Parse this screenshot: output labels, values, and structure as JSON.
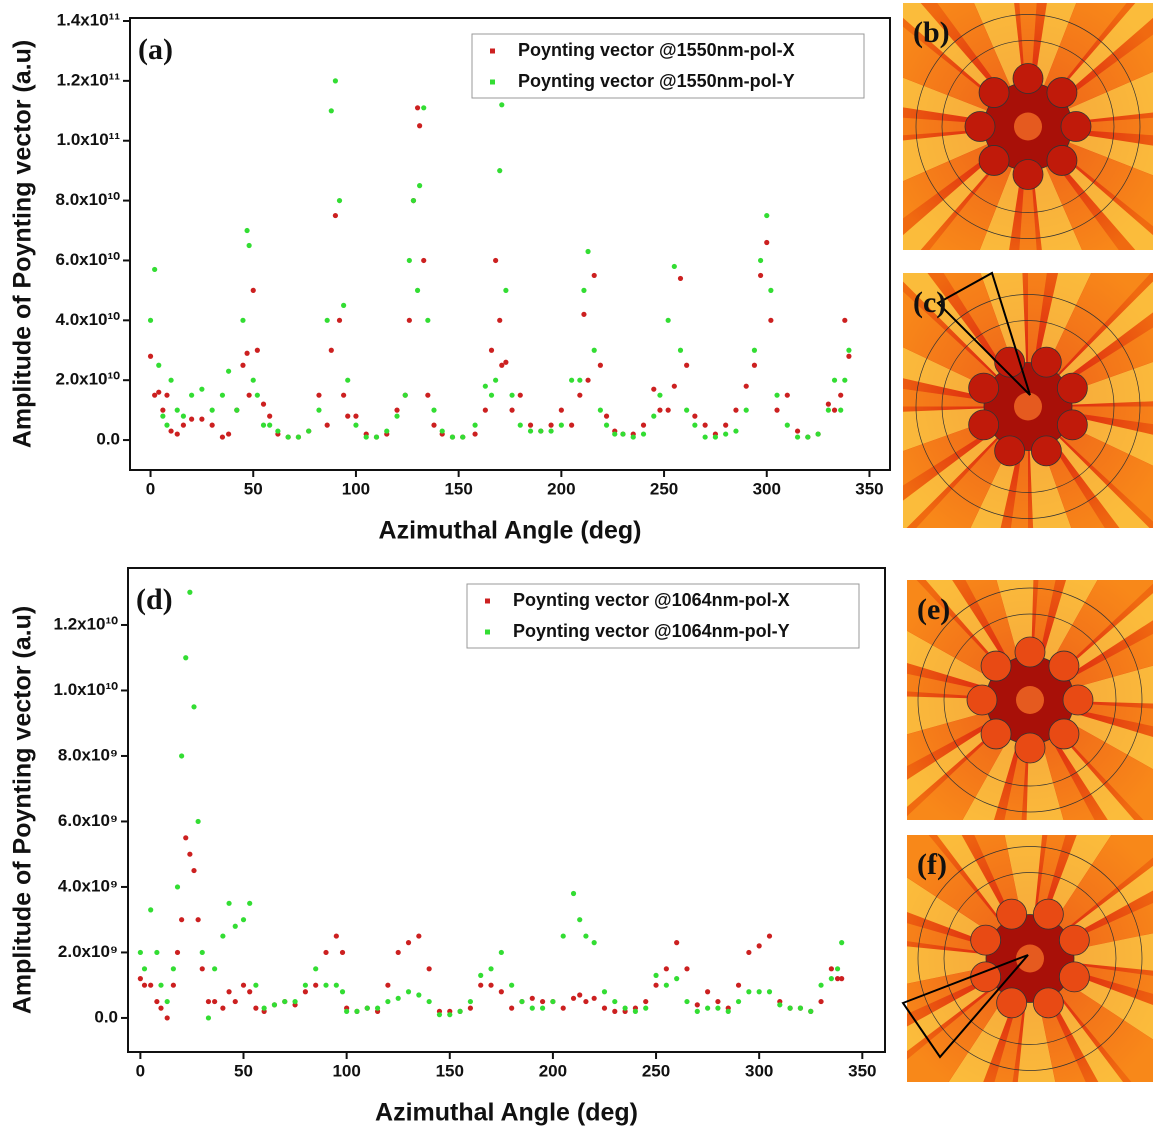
{
  "chart_data": [
    {
      "type": "scatter",
      "label": "(a)",
      "xlabel": "Azimuthal Angle (deg)",
      "ylabel": "Amplitude of Poynting vector (a.u)",
      "xlim": [
        -10,
        360
      ],
      "ylim": [
        -10000000000.0,
        141000000000.0
      ],
      "xticks": [
        0,
        50,
        100,
        150,
        200,
        250,
        300,
        350
      ],
      "yticks": [
        {
          "value": 0,
          "label": "0.0"
        },
        {
          "value": 20000000000.0,
          "label": "2.0x10¹⁰"
        },
        {
          "value": 40000000000.0,
          "label": "4.0x10¹⁰"
        },
        {
          "value": 60000000000.0,
          "label": "6.0x10¹⁰"
        },
        {
          "value": 80000000000.0,
          "label": "8.0x10¹⁰"
        },
        {
          "value": 100000000000.0,
          "label": "1.0x10¹¹"
        },
        {
          "value": 120000000000.0,
          "label": "1.2x10¹¹"
        },
        {
          "value": 140000000000.0,
          "label": "1.4x10¹¹"
        }
      ],
      "legend": "upper right",
      "x": [
        0,
        2,
        4,
        6,
        8,
        10,
        13,
        16,
        20,
        25,
        30,
        35,
        38,
        42,
        45,
        47,
        48,
        50,
        52,
        55,
        58,
        62,
        67,
        72,
        77,
        82,
        86,
        88,
        90,
        92,
        94,
        96,
        100,
        105,
        110,
        115,
        120,
        124,
        126,
        128,
        130,
        131,
        133,
        135,
        138,
        142,
        147,
        152,
        158,
        163,
        166,
        168,
        170,
        171,
        173,
        176,
        180,
        185,
        190,
        195,
        200,
        205,
        209,
        211,
        213,
        216,
        219,
        222,
        226,
        230,
        235,
        240,
        245,
        248,
        252,
        255,
        258,
        261,
        265,
        270,
        275,
        280,
        285,
        290,
        294,
        297,
        300,
        302,
        305,
        310,
        315,
        320,
        325,
        330,
        333,
        336,
        338,
        340
      ],
      "series": [
        {
          "name": "Poynting vector @1550nm-pol-X",
          "color": "#cc2020",
          "values": [
            28000000000.0,
            15000000000.0,
            16000000000.0,
            10000000000.0,
            15000000000.0,
            3000000000.0,
            2000000000.0,
            5000000000.0,
            7000000000.0,
            7000000000.0,
            5000000000.0,
            1000000000.0,
            2000000000.0,
            10000000000.0,
            25000000000.0,
            29000000000.0,
            15000000000.0,
            50000000000.0,
            30000000000.0,
            12000000000.0,
            8000000000.0,
            2000000000.0,
            1000000000.0,
            1000000000.0,
            3000000000.0,
            15000000000.0,
            5000000000.0,
            30000000000.0,
            75000000000.0,
            40000000000.0,
            15000000000.0,
            8000000000.0,
            8000000000.0,
            2000000000.0,
            1000000000.0,
            2000000000.0,
            10000000000.0,
            15000000000.0,
            40000000000.0,
            80000000000.0,
            111000000000.0,
            105000000000.0,
            60000000000.0,
            15000000000.0,
            5000000000.0,
            2000000000.0,
            1000000000.0,
            1000000000.0,
            2000000000.0,
            10000000000.0,
            30000000000.0,
            60000000000.0,
            40000000000.0,
            25000000000.0,
            26000000000.0,
            10000000000.0,
            15000000000.0,
            5000000000.0,
            3000000000.0,
            5000000000.0,
            10000000000.0,
            5000000000.0,
            15000000000.0,
            42000000000.0,
            20000000000.0,
            55000000000.0,
            25000000000.0,
            8000000000.0,
            3000000000.0,
            2000000000.0,
            2000000000.0,
            5000000000.0,
            17000000000.0,
            10000000000.0,
            10000000000.0,
            18000000000.0,
            54000000000.0,
            25000000000.0,
            8000000000.0,
            5000000000.0,
            2000000000.0,
            5000000000.0,
            10000000000.0,
            18000000000.0,
            25000000000.0,
            55000000000.0,
            66000000000.0,
            40000000000.0,
            10000000000.0,
            15000000000.0,
            3000000000.0,
            1000000000.0,
            2000000000.0,
            12000000000.0,
            10000000000.0,
            15000000000.0,
            40000000000.0,
            28000000000.0
          ]
        },
        {
          "name": "Poynting vector @1550nm-pol-Y",
          "color": "#33dd33",
          "values": [
            40000000000.0,
            57000000000.0,
            25000000000.0,
            8000000000.0,
            5000000000.0,
            20000000000.0,
            10000000000.0,
            8000000000.0,
            15000000000.0,
            17000000000.0,
            10000000000.0,
            15000000000.0,
            23000000000.0,
            10000000000.0,
            40000000000.0,
            70000000000.0,
            65000000000.0,
            20000000000.0,
            15000000000.0,
            5000000000.0,
            5000000000.0,
            3000000000.0,
            1000000000.0,
            1000000000.0,
            3000000000.0,
            10000000000.0,
            40000000000.0,
            110000000000.0,
            120000000000.0,
            80000000000.0,
            45000000000.0,
            20000000000.0,
            5000000000.0,
            1000000000.0,
            1000000000.0,
            3000000000.0,
            8000000000.0,
            15000000000.0,
            60000000000.0,
            80000000000.0,
            50000000000.0,
            85000000000.0,
            111000000000.0,
            40000000000.0,
            10000000000.0,
            3000000000.0,
            1000000000.0,
            1000000000.0,
            5000000000.0,
            18000000000.0,
            15000000000.0,
            20000000000.0,
            90000000000.0,
            112000000000.0,
            50000000000.0,
            15000000000.0,
            5000000000.0,
            3000000000.0,
            3000000000.0,
            3000000000.0,
            5000000000.0,
            20000000000.0,
            20000000000.0,
            50000000000.0,
            63000000000.0,
            30000000000.0,
            10000000000.0,
            5000000000.0,
            2000000000.0,
            2000000000.0,
            1000000000.0,
            2000000000.0,
            8000000000.0,
            15000000000.0,
            40000000000.0,
            58000000000.0,
            30000000000.0,
            10000000000.0,
            5000000000.0,
            1000000000.0,
            1000000000.0,
            2000000000.0,
            3000000000.0,
            10000000000.0,
            30000000000.0,
            60000000000.0,
            75000000000.0,
            50000000000.0,
            15000000000.0,
            5000000000.0,
            1000000000.0,
            1000000000.0,
            2000000000.0,
            10000000000.0,
            20000000000.0,
            10000000000.0,
            20000000000.0,
            30000000000.0
          ]
        }
      ]
    },
    {
      "type": "scatter",
      "label": "(d)",
      "xlabel": "Azimuthal Angle (deg)",
      "ylabel": "Amplitude of Poynting vector (a.u)",
      "xlim": [
        -6,
        361
      ],
      "ylim": [
        -1040000000.0,
        13740000000.0
      ],
      "xticks": [
        0,
        50,
        100,
        150,
        200,
        250,
        300,
        350
      ],
      "yticks": [
        {
          "value": 0,
          "label": "0.0"
        },
        {
          "value": 2000000000.0,
          "label": "2.0x10⁹"
        },
        {
          "value": 4000000000.0,
          "label": "4.0x10⁹"
        },
        {
          "value": 6000000000.0,
          "label": "6.0x10⁹"
        },
        {
          "value": 8000000000.0,
          "label": "8.0x10⁹"
        },
        {
          "value": 10000000000.0,
          "label": "1.0x10¹⁰"
        },
        {
          "value": 12000000000.0,
          "label": "1.2x10¹⁰"
        }
      ],
      "legend": "upper right",
      "x": [
        0,
        2,
        5,
        8,
        10,
        13,
        16,
        18,
        20,
        22,
        24,
        26,
        28,
        30,
        33,
        36,
        40,
        43,
        46,
        50,
        53,
        56,
        60,
        65,
        70,
        75,
        80,
        85,
        90,
        95,
        98,
        100,
        105,
        110,
        115,
        120,
        125,
        130,
        135,
        140,
        145,
        150,
        155,
        160,
        165,
        170,
        175,
        180,
        185,
        190,
        195,
        200,
        205,
        210,
        213,
        216,
        220,
        225,
        230,
        235,
        240,
        245,
        250,
        255,
        260,
        265,
        270,
        275,
        280,
        285,
        290,
        295,
        300,
        305,
        310,
        315,
        320,
        325,
        330,
        335,
        338,
        340
      ],
      "series": [
        {
          "name": "Poynting vector @1064nm-pol-X",
          "color": "#cc2020",
          "values": [
            1200000000.0,
            1000000000.0,
            1000000000.0,
            500000000.0,
            300000000.0,
            0,
            1000000000.0,
            2000000000.0,
            3000000000.0,
            5500000000.0,
            5000000000.0,
            4500000000.0,
            3000000000.0,
            1500000000.0,
            500000000.0,
            500000000.0,
            300000000.0,
            800000000.0,
            500000000.0,
            1000000000.0,
            800000000.0,
            300000000.0,
            200000000.0,
            400000000.0,
            500000000.0,
            400000000.0,
            800000000.0,
            1000000000.0,
            2000000000.0,
            2500000000.0,
            2000000000.0,
            300000000.0,
            200000000.0,
            300000000.0,
            200000000.0,
            1000000000.0,
            2000000000.0,
            2300000000.0,
            2500000000.0,
            1500000000.0,
            200000000.0,
            200000000.0,
            200000000.0,
            300000000.0,
            1000000000.0,
            1000000000.0,
            800000000.0,
            300000000.0,
            500000000.0,
            600000000.0,
            500000000.0,
            500000000.0,
            300000000.0,
            600000000.0,
            700000000.0,
            500000000.0,
            600000000.0,
            300000000.0,
            200000000.0,
            200000000.0,
            300000000.0,
            500000000.0,
            1000000000.0,
            1500000000.0,
            2300000000.0,
            1500000000.0,
            400000000.0,
            800000000.0,
            500000000.0,
            300000000.0,
            1000000000.0,
            2000000000.0,
            2200000000.0,
            2500000000.0,
            500000000.0,
            300000000.0,
            300000000.0,
            200000000.0,
            500000000.0,
            1500000000.0,
            1200000000.0,
            1200000000.0
          ]
        },
        {
          "name": "Poynting vector @1064nm-pol-Y",
          "color": "#33dd33",
          "values": [
            2000000000.0,
            1500000000.0,
            3300000000.0,
            2000000000.0,
            1000000000.0,
            500000000.0,
            1500000000.0,
            4000000000.0,
            8000000000.0,
            11000000000.0,
            13000000000.0,
            9500000000.0,
            6000000000.0,
            2000000000.0,
            0,
            1500000000.0,
            2500000000.0,
            3500000000.0,
            2800000000.0,
            3000000000.0,
            3500000000.0,
            1000000000.0,
            300000000.0,
            400000000.0,
            500000000.0,
            500000000.0,
            1000000000.0,
            1500000000.0,
            1000000000.0,
            1000000000.0,
            800000000.0,
            200000000.0,
            200000000.0,
            300000000.0,
            300000000.0,
            500000000.0,
            600000000.0,
            800000000.0,
            700000000.0,
            500000000.0,
            100000000.0,
            100000000.0,
            200000000.0,
            500000000.0,
            1300000000.0,
            1500000000.0,
            2000000000.0,
            1000000000.0,
            500000000.0,
            300000000.0,
            300000000.0,
            500000000.0,
            2500000000.0,
            3800000000.0,
            3000000000.0,
            2500000000.0,
            2300000000.0,
            800000000.0,
            500000000.0,
            300000000.0,
            200000000.0,
            300000000.0,
            1300000000.0,
            1000000000.0,
            1200000000.0,
            500000000.0,
            200000000.0,
            300000000.0,
            300000000.0,
            200000000.0,
            500000000.0,
            800000000.0,
            800000000.0,
            800000000.0,
            400000000.0,
            300000000.0,
            300000000.0,
            200000000.0,
            1000000000.0,
            1200000000.0,
            1500000000.0,
            2300000000.0
          ]
        }
      ]
    }
  ],
  "panels": [
    {
      "label": "(b)"
    },
    {
      "label": "(c)"
    },
    {
      "label": "(e)"
    },
    {
      "label": "(f)"
    }
  ]
}
